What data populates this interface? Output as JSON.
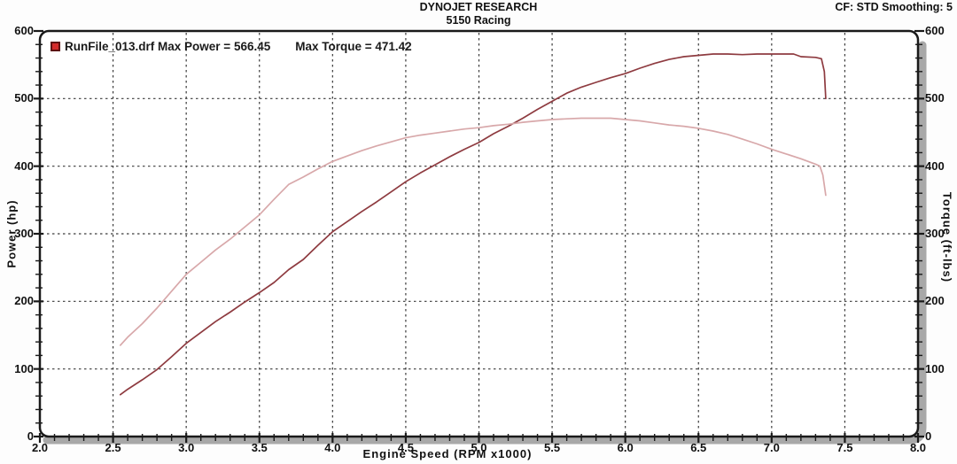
{
  "header": {
    "title": "DYNOJET RESEARCH",
    "subtitle": "5150 Racing",
    "settings": "CF: STD  Smoothing: 5"
  },
  "legend": {
    "marker_color": "#d32b2b",
    "run_label": "RunFile_013.drf Max Power = 566.45",
    "torque_label": "Max Torque = 471.42"
  },
  "axes": {
    "left_label": "Power (hp)",
    "right_label": "Torque (ft-lbs)",
    "bottom_label": "Engine Speed (RPM x1000)"
  },
  "colors": {
    "power_line": "#8e3b40",
    "torque_line": "#d8a8aa",
    "frame": "#1a1a1a",
    "grid": "#3a3a3a",
    "shadow": "#a8a8a8",
    "plot_bg": "#ffffff"
  },
  "chart_data": {
    "type": "line",
    "title": "DYNOJET RESEARCH",
    "subtitle": "5150 Racing",
    "correction_factor": "CF: STD",
    "smoothing": "5",
    "xlabel": "Engine Speed (RPM x1000)",
    "ylabel_left": "Power (hp)",
    "ylabel_right": "Torque (ft-lbs)",
    "xlim": [
      2.0,
      8.0
    ],
    "ylim": [
      0,
      600
    ],
    "grid": "dashed",
    "legend_position": "top-left",
    "x_ticks": [
      {
        "v": 2.0,
        "label": "2.0"
      },
      {
        "v": 2.5,
        "label": "2.5"
      },
      {
        "v": 3.0,
        "label": "3.0"
      },
      {
        "v": 3.5,
        "label": "3.5"
      },
      {
        "v": 4.0,
        "label": "4.0"
      },
      {
        "v": 4.5,
        "label": "4.5"
      },
      {
        "v": 5.0,
        "label": "5.0"
      },
      {
        "v": 5.5,
        "label": "5.5"
      },
      {
        "v": 6.0,
        "label": "6.0"
      },
      {
        "v": 6.5,
        "label": "6.5"
      },
      {
        "v": 7.0,
        "label": "7.0"
      },
      {
        "v": 7.5,
        "label": "7.5"
      },
      {
        "v": 8.0,
        "label": "8.0"
      }
    ],
    "y_ticks": [
      {
        "v": 0,
        "label": "0"
      },
      {
        "v": 100,
        "label": "100"
      },
      {
        "v": 200,
        "label": "200"
      },
      {
        "v": 300,
        "label": "300"
      },
      {
        "v": 400,
        "label": "400"
      },
      {
        "v": 500,
        "label": "500"
      },
      {
        "v": 600,
        "label": "600"
      }
    ],
    "x_grid": [
      2.5,
      3.0,
      3.5,
      4.0,
      4.5,
      5.0,
      5.5,
      6.0,
      6.5,
      7.0,
      7.5
    ],
    "y_grid": [
      100,
      200,
      300,
      400,
      500
    ],
    "x_minor_step": 0.1,
    "y_minor_step": 20,
    "series": [
      {
        "name": "Power",
        "unit": "hp",
        "axis": "left",
        "max": 566.45,
        "color": "#8e3b40",
        "points": [
          [
            2.55,
            62
          ],
          [
            2.6,
            70
          ],
          [
            2.7,
            84
          ],
          [
            2.8,
            99
          ],
          [
            2.9,
            118
          ],
          [
            3.0,
            138
          ],
          [
            3.1,
            154
          ],
          [
            3.2,
            170
          ],
          [
            3.3,
            184
          ],
          [
            3.4,
            199
          ],
          [
            3.5,
            213
          ],
          [
            3.6,
            228
          ],
          [
            3.7,
            247
          ],
          [
            3.8,
            262
          ],
          [
            3.9,
            283
          ],
          [
            4.0,
            303
          ],
          [
            4.1,
            318
          ],
          [
            4.2,
            333
          ],
          [
            4.3,
            347
          ],
          [
            4.4,
            362
          ],
          [
            4.5,
            377
          ],
          [
            4.6,
            390
          ],
          [
            4.7,
            402
          ],
          [
            4.8,
            414
          ],
          [
            4.9,
            425
          ],
          [
            5.0,
            435
          ],
          [
            5.1,
            448
          ],
          [
            5.2,
            459
          ],
          [
            5.3,
            471
          ],
          [
            5.4,
            484
          ],
          [
            5.5,
            496
          ],
          [
            5.6,
            508
          ],
          [
            5.7,
            517
          ],
          [
            5.8,
            524
          ],
          [
            5.9,
            531
          ],
          [
            6.0,
            537
          ],
          [
            6.1,
            545
          ],
          [
            6.2,
            552
          ],
          [
            6.3,
            558
          ],
          [
            6.4,
            562
          ],
          [
            6.5,
            564
          ],
          [
            6.6,
            566
          ],
          [
            6.7,
            566
          ],
          [
            6.8,
            565
          ],
          [
            6.9,
            566
          ],
          [
            7.0,
            566
          ],
          [
            7.1,
            566
          ],
          [
            7.15,
            566
          ],
          [
            7.2,
            562
          ],
          [
            7.3,
            561
          ],
          [
            7.34,
            559
          ],
          [
            7.36,
            540
          ],
          [
            7.37,
            500
          ]
        ]
      },
      {
        "name": "Torque",
        "unit": "ft-lbs",
        "axis": "right",
        "max": 471.42,
        "color": "#d8a8aa",
        "points": [
          [
            2.55,
            135
          ],
          [
            2.6,
            147
          ],
          [
            2.7,
            167
          ],
          [
            2.8,
            190
          ],
          [
            2.9,
            215
          ],
          [
            3.0,
            240
          ],
          [
            3.1,
            258
          ],
          [
            3.2,
            276
          ],
          [
            3.3,
            292
          ],
          [
            3.4,
            310
          ],
          [
            3.5,
            328
          ],
          [
            3.6,
            351
          ],
          [
            3.7,
            373
          ],
          [
            3.8,
            384
          ],
          [
            3.9,
            396
          ],
          [
            4.0,
            407
          ],
          [
            4.1,
            415
          ],
          [
            4.2,
            423
          ],
          [
            4.3,
            430
          ],
          [
            4.4,
            436
          ],
          [
            4.5,
            442
          ],
          [
            4.6,
            446
          ],
          [
            4.7,
            449
          ],
          [
            4.8,
            452
          ],
          [
            4.9,
            455
          ],
          [
            5.0,
            457
          ],
          [
            5.1,
            460
          ],
          [
            5.2,
            462
          ],
          [
            5.3,
            465
          ],
          [
            5.4,
            467
          ],
          [
            5.5,
            469
          ],
          [
            5.6,
            470
          ],
          [
            5.7,
            471
          ],
          [
            5.8,
            471
          ],
          [
            5.9,
            471
          ],
          [
            6.0,
            469
          ],
          [
            6.1,
            467
          ],
          [
            6.2,
            464
          ],
          [
            6.3,
            461
          ],
          [
            6.4,
            459
          ],
          [
            6.5,
            456
          ],
          [
            6.6,
            452
          ],
          [
            6.7,
            447
          ],
          [
            6.8,
            440
          ],
          [
            6.9,
            433
          ],
          [
            7.0,
            425
          ],
          [
            7.1,
            418
          ],
          [
            7.2,
            411
          ],
          [
            7.3,
            403
          ],
          [
            7.33,
            400
          ],
          [
            7.35,
            387
          ],
          [
            7.37,
            357
          ]
        ]
      }
    ]
  }
}
